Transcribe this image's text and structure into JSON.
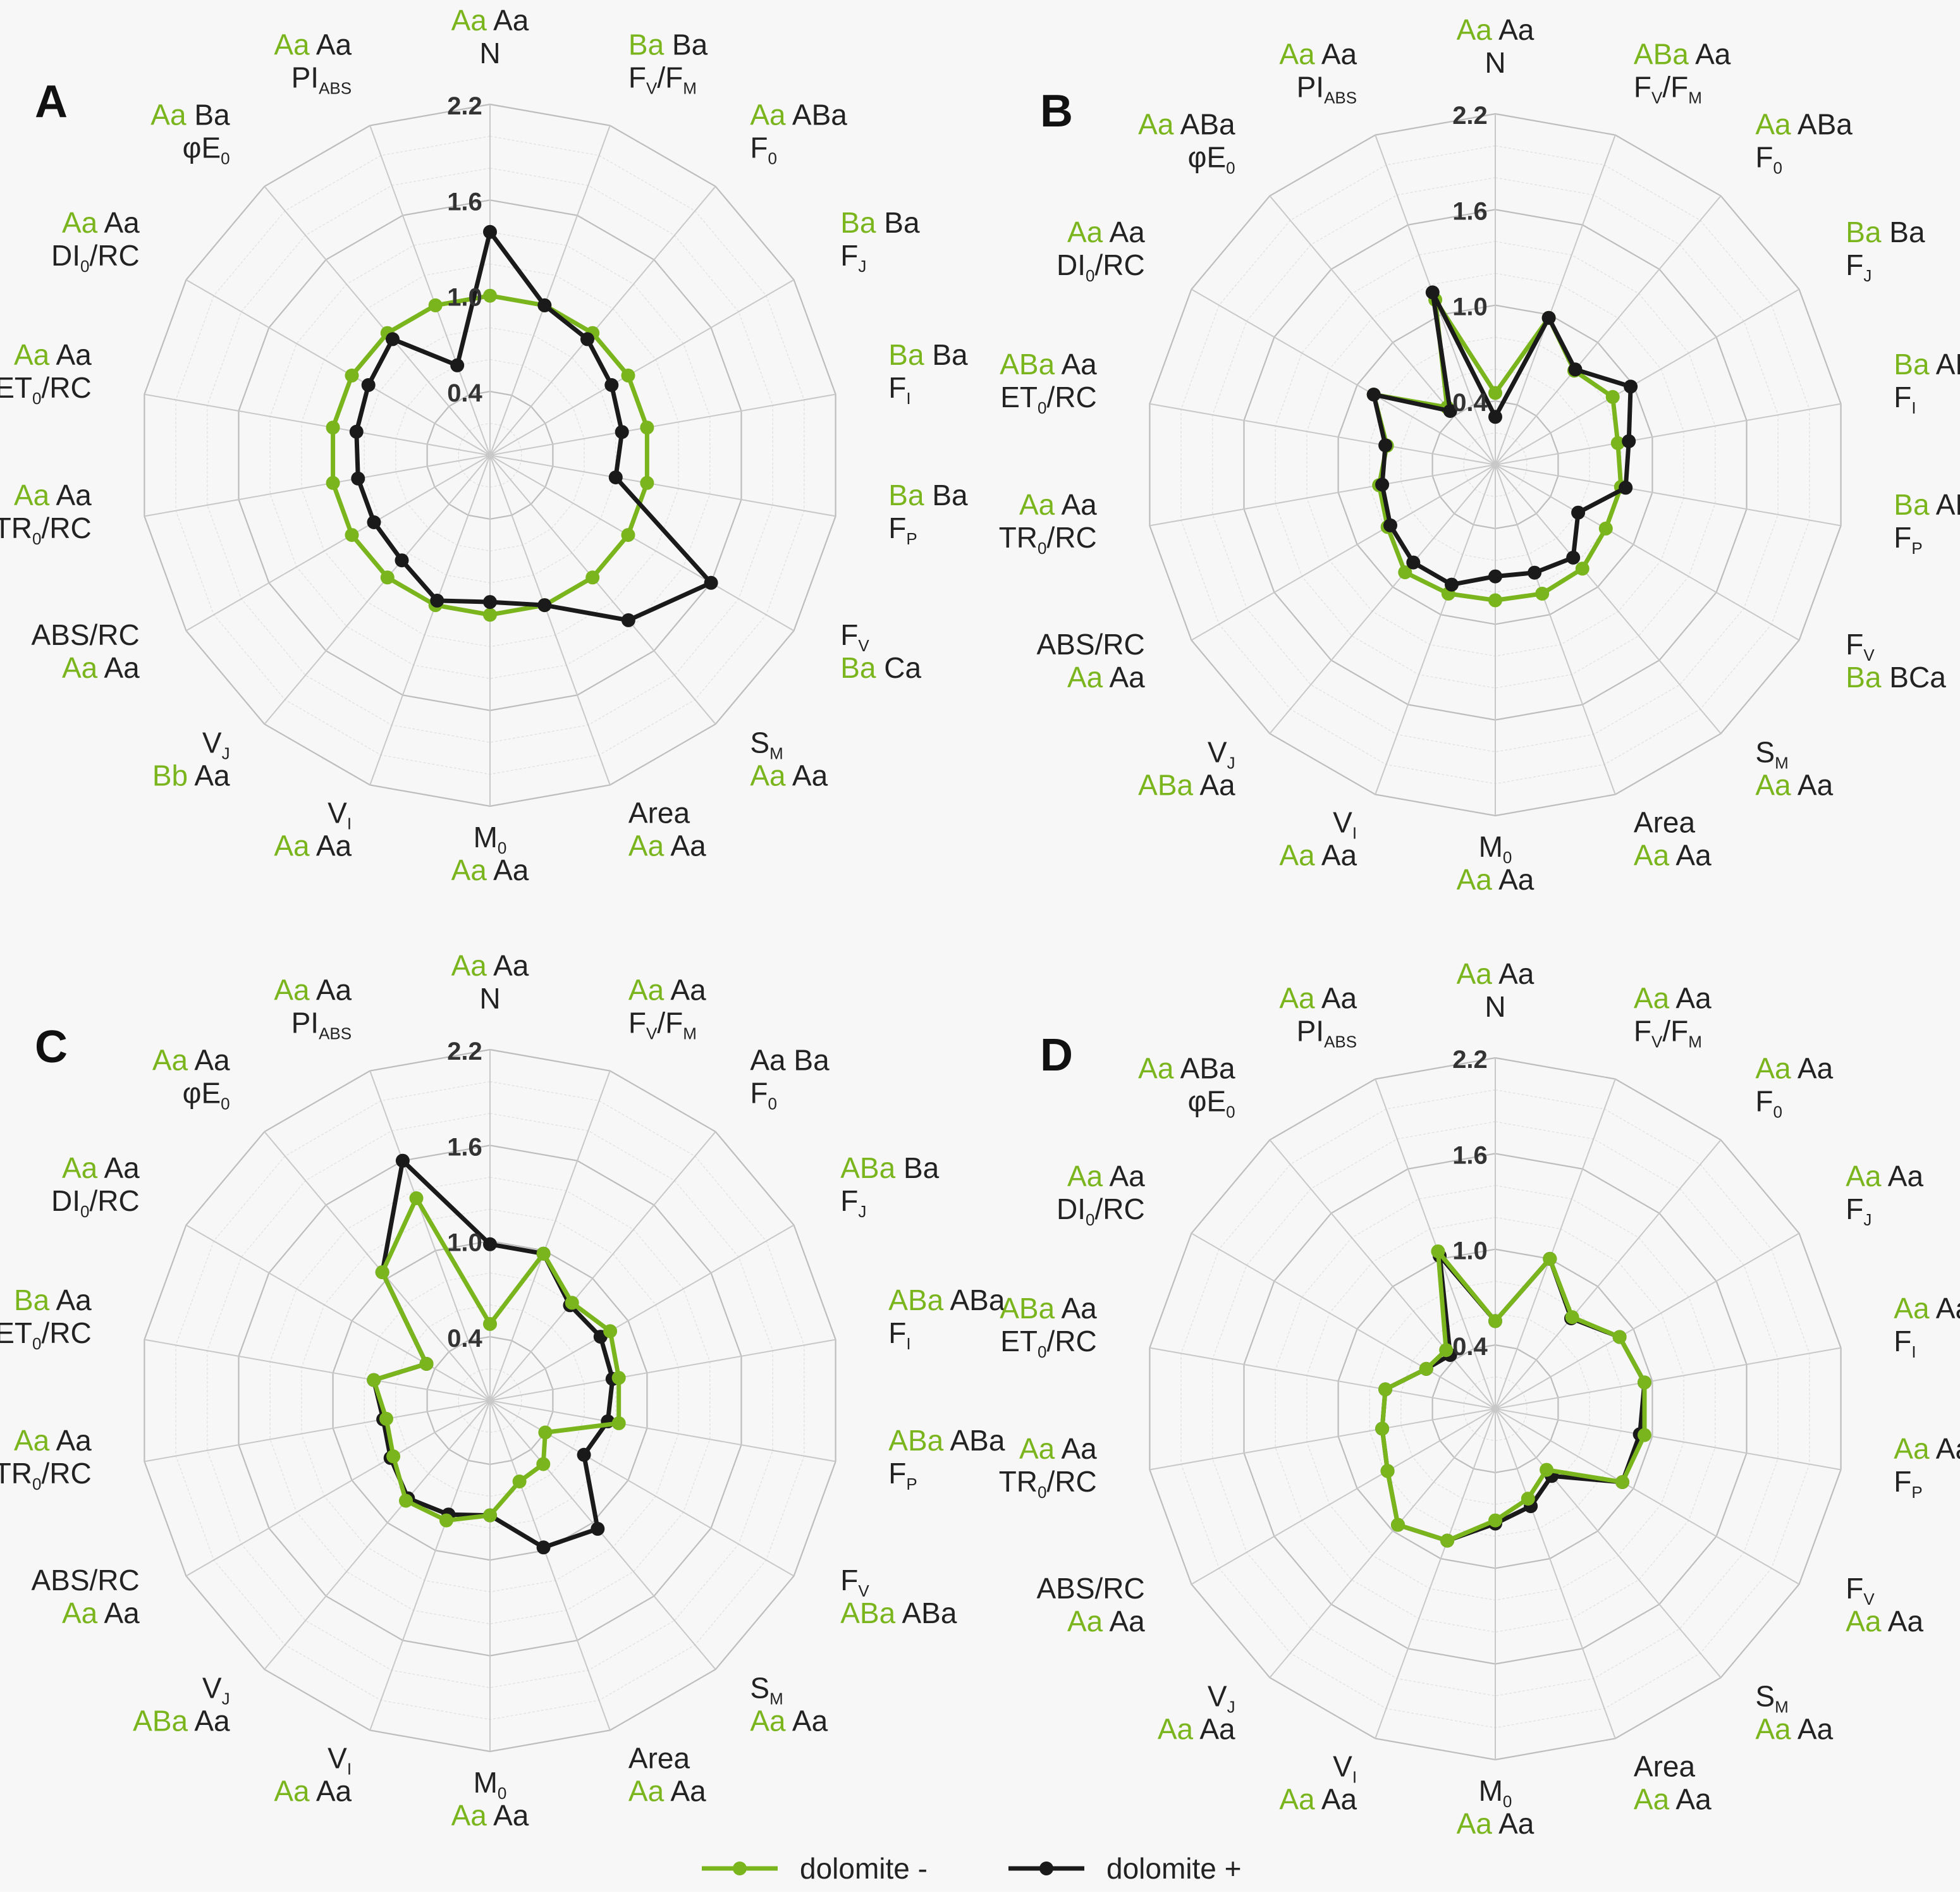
{
  "legend": {
    "items": [
      {
        "label": "dolomite -",
        "color": "#7ab51d"
      },
      {
        "label": "dolomite +",
        "color": "#1a1a1a"
      }
    ]
  },
  "colors": {
    "green": "#7ab51d",
    "black": "#1a1a1a",
    "grid": "#cfcfcf"
  },
  "chart_data": [
    {
      "type": "radar",
      "panel": "A",
      "ticks": [
        "0.4",
        "1.0",
        "1.6",
        "2.2"
      ],
      "rlim": [
        0,
        2.2
      ],
      "axes": [
        {
          "main": "N",
          "sub": "",
          "letters": [
            "Aa",
            "Aa"
          ]
        },
        {
          "main": "F",
          "sub": "V",
          "tail": "/F",
          "sub2": "M",
          "letters": [
            "Ba",
            "Ba"
          ]
        },
        {
          "main": "F",
          "sub": "0",
          "letters": [
            "Aa",
            "ABa"
          ]
        },
        {
          "main": "F",
          "sub": "J",
          "letters": [
            "Ba",
            "Ba"
          ]
        },
        {
          "main": "F",
          "sub": "I",
          "letters": [
            "Ba",
            "Ba"
          ]
        },
        {
          "main": "F",
          "sub": "P",
          "letters": [
            "Ba",
            "Ba"
          ]
        },
        {
          "main": "F",
          "sub": "V",
          "letters": [
            "Ba",
            "Ca"
          ]
        },
        {
          "main": "S",
          "sub": "M",
          "letters": [
            "Aa",
            "Aa"
          ]
        },
        {
          "main": "Area",
          "sub": "",
          "letters": [
            "Aa",
            "Aa"
          ]
        },
        {
          "main": "M",
          "sub": "0",
          "letters": [
            "Aa",
            "Aa"
          ]
        },
        {
          "main": "V",
          "sub": "I",
          "letters": [
            "Aa",
            "Aa"
          ]
        },
        {
          "main": "V",
          "sub": "J",
          "letters": [
            "Bb",
            "Aa"
          ]
        },
        {
          "main": "ABS/RC",
          "sub": "",
          "letters": [
            "Aa",
            "Aa"
          ]
        },
        {
          "main": "TR",
          "sub": "0",
          "tail": "/RC",
          "letters": [
            "Aa",
            "Aa"
          ]
        },
        {
          "main": "ET",
          "sub": "0",
          "tail": "/RC",
          "letters": [
            "Aa",
            "Aa"
          ]
        },
        {
          "main": "DI",
          "sub": "0",
          "tail": "/RC",
          "letters": [
            "Aa",
            "Aa"
          ]
        },
        {
          "main": "φE",
          "sub": "0",
          "letters": [
            "Aa",
            "Ba"
          ]
        },
        {
          "main": "PI",
          "sub": "ABS",
          "letters": [
            "Aa",
            "Aa"
          ]
        }
      ],
      "series": [
        {
          "name": "dolomite -",
          "values": [
            1.0,
            1.0,
            1.0,
            1.0,
            1.0,
            1.0,
            1.0,
            1.0,
            1.0,
            1.0,
            1.0,
            1.0,
            1.0,
            1.0,
            1.0,
            1.0,
            1.0,
            1.0
          ]
        },
        {
          "name": "dolomite +",
          "values": [
            1.4,
            1.0,
            0.95,
            0.88,
            0.84,
            0.8,
            1.6,
            1.35,
            1.0,
            0.92,
            0.97,
            0.86,
            0.84,
            0.84,
            0.85,
            0.88,
            0.95,
            0.6
          ]
        }
      ]
    },
    {
      "type": "radar",
      "panel": "B",
      "ticks": [
        "0.4",
        "1.0",
        "1.6",
        "2.2"
      ],
      "rlim": [
        0,
        2.2
      ],
      "axes": [
        {
          "main": "N",
          "sub": "",
          "letters": [
            "Aa",
            "Aa"
          ]
        },
        {
          "main": "F",
          "sub": "V",
          "tail": "/F",
          "sub2": "M",
          "letters": [
            "ABa",
            "Aa"
          ]
        },
        {
          "main": "F",
          "sub": "0",
          "letters": [
            "Aa",
            "ABa"
          ]
        },
        {
          "main": "F",
          "sub": "J",
          "letters": [
            "Ba",
            "Ba"
          ]
        },
        {
          "main": "F",
          "sub": "I",
          "letters": [
            "Ba",
            "ABa"
          ]
        },
        {
          "main": "F",
          "sub": "P",
          "letters": [
            "Ba",
            "ABa"
          ]
        },
        {
          "main": "F",
          "sub": "V",
          "letters": [
            "Ba",
            "BCa"
          ]
        },
        {
          "main": "S",
          "sub": "M",
          "letters": [
            "Aa",
            "Aa"
          ]
        },
        {
          "main": "Area",
          "sub": "",
          "letters": [
            "Aa",
            "Aa"
          ]
        },
        {
          "main": "M",
          "sub": "0",
          "letters": [
            "Aa",
            "Aa"
          ]
        },
        {
          "main": "V",
          "sub": "I",
          "letters": [
            "Aa",
            "Aa"
          ]
        },
        {
          "main": "V",
          "sub": "J",
          "letters": [
            "ABa",
            "Aa"
          ]
        },
        {
          "main": "ABS/RC",
          "sub": "",
          "letters": [
            "Aa",
            "Aa"
          ]
        },
        {
          "main": "TR",
          "sub": "0",
          "tail": "/RC",
          "letters": [
            "Aa",
            "Aa"
          ]
        },
        {
          "main": "ET",
          "sub": "0",
          "tail": "/RC",
          "letters": [
            "ABa",
            "Aa"
          ]
        },
        {
          "main": "DI",
          "sub": "0",
          "tail": "/RC",
          "letters": [
            "Aa",
            "Aa"
          ]
        },
        {
          "main": "φE",
          "sub": "0",
          "letters": [
            "Aa",
            "ABa"
          ]
        },
        {
          "main": "PI",
          "sub": "ABS",
          "letters": [
            "Aa",
            "Aa"
          ]
        }
      ],
      "series": [
        {
          "name": "dolomite -",
          "values": [
            0.45,
            0.98,
            0.77,
            0.85,
            0.78,
            0.8,
            0.8,
            0.85,
            0.86,
            0.85,
            0.86,
            0.88,
            0.78,
            0.74,
            0.69,
            0.88,
            0.47,
            1.1
          ]
        },
        {
          "name": "dolomite +",
          "values": [
            0.3,
            0.98,
            0.78,
            0.98,
            0.85,
            0.83,
            0.6,
            0.76,
            0.72,
            0.7,
            0.8,
            0.8,
            0.76,
            0.72,
            0.7,
            0.88,
            0.44,
            1.15
          ]
        }
      ]
    },
    {
      "type": "radar",
      "panel": "C",
      "ticks": [
        "0.4",
        "1.0",
        "1.6",
        "2.2"
      ],
      "rlim": [
        0,
        2.2
      ],
      "axes": [
        {
          "main": "N",
          "sub": "",
          "letters": [
            "Aa",
            "Aa"
          ]
        },
        {
          "main": "F",
          "sub": "V",
          "tail": "/F",
          "sub2": "M",
          "letters": [
            "Aa",
            "Aa"
          ]
        },
        {
          "main": "F",
          "sub": "0",
          "letters": [
            "Aa",
            "Ba"
          ],
          "plain": true
        },
        {
          "main": "F",
          "sub": "J",
          "letters": [
            "ABa",
            "Ba"
          ]
        },
        {
          "main": "F",
          "sub": "I",
          "letters": [
            "ABa",
            "ABa"
          ]
        },
        {
          "main": "F",
          "sub": "P",
          "letters": [
            "ABa",
            "ABa"
          ]
        },
        {
          "main": "F",
          "sub": "V",
          "letters": [
            "ABa",
            "ABa"
          ]
        },
        {
          "main": "S",
          "sub": "M",
          "letters": [
            "Aa",
            "Aa"
          ]
        },
        {
          "main": "Area",
          "sub": "",
          "letters": [
            "Aa",
            "Aa"
          ]
        },
        {
          "main": "M",
          "sub": "0",
          "letters": [
            "Aa",
            "Aa"
          ]
        },
        {
          "main": "V",
          "sub": "I",
          "letters": [
            "Aa",
            "Aa"
          ]
        },
        {
          "main": "V",
          "sub": "J",
          "letters": [
            "ABa",
            "Aa"
          ]
        },
        {
          "main": "ABS/RC",
          "sub": "",
          "letters": [
            "Aa",
            "Aa"
          ]
        },
        {
          "main": "TR",
          "sub": "0",
          "tail": "/RC",
          "letters": [
            "Aa",
            "Aa"
          ]
        },
        {
          "main": "ET",
          "sub": "0",
          "tail": "/RC",
          "letters": [
            "Ba",
            "Aa"
          ]
        },
        {
          "main": "DI",
          "sub": "0",
          "tail": "/RC",
          "letters": [
            "Aa",
            "Aa"
          ]
        },
        {
          "main": "φE",
          "sub": "0",
          "letters": [
            "Aa",
            "Aa"
          ]
        },
        {
          "main": "PI",
          "sub": "ABS",
          "letters": [
            "Aa",
            "Aa"
          ]
        }
      ],
      "series": [
        {
          "name": "dolomite -",
          "values": [
            0.48,
            0.98,
            0.8,
            0.87,
            0.82,
            0.82,
            0.4,
            0.52,
            0.54,
            0.72,
            0.8,
            0.82,
            0.7,
            0.66,
            0.74,
            0.46,
            1.05,
            1.35
          ]
        },
        {
          "name": "dolomite +",
          "values": [
            0.98,
            0.98,
            0.78,
            0.8,
            0.78,
            0.75,
            0.68,
            1.05,
            0.98,
            0.72,
            0.76,
            0.8,
            0.72,
            0.68,
            0.74,
            0.46,
            1.05,
            1.6
          ]
        }
      ]
    },
    {
      "type": "radar",
      "panel": "D",
      "ticks": [
        "0.4",
        "1.0",
        "1.6",
        "2.2"
      ],
      "rlim": [
        0,
        2.2
      ],
      "axes": [
        {
          "main": "N",
          "sub": "",
          "letters": [
            "Aa",
            "Aa"
          ]
        },
        {
          "main": "F",
          "sub": "V",
          "tail": "/F",
          "sub2": "M",
          "letters": [
            "Aa",
            "Aa"
          ]
        },
        {
          "main": "F",
          "sub": "0",
          "letters": [
            "Aa",
            "Aa"
          ]
        },
        {
          "main": "F",
          "sub": "J",
          "letters": [
            "Aa",
            "Aa"
          ]
        },
        {
          "main": "F",
          "sub": "I",
          "letters": [
            "Aa",
            "Aa"
          ]
        },
        {
          "main": "F",
          "sub": "P",
          "letters": [
            "Aa",
            "Aa"
          ]
        },
        {
          "main": "F",
          "sub": "V",
          "letters": [
            "Aa",
            "Aa"
          ]
        },
        {
          "main": "S",
          "sub": "M",
          "letters": [
            "Aa",
            "Aa"
          ]
        },
        {
          "main": "Area",
          "sub": "",
          "letters": [
            "Aa",
            "Aa"
          ]
        },
        {
          "main": "M",
          "sub": "0",
          "letters": [
            "Aa",
            "Aa"
          ]
        },
        {
          "main": "V",
          "sub": "I",
          "letters": [
            "Aa",
            "Aa"
          ]
        },
        {
          "main": "V",
          "sub": "J",
          "letters": [
            "Aa",
            "Aa"
          ]
        },
        {
          "main": "ABS/RC",
          "sub": "",
          "letters": [
            "Aa",
            "Aa"
          ]
        },
        {
          "main": "TR",
          "sub": "0",
          "tail": "/RC",
          "letters": [
            "Aa",
            "Aa"
          ]
        },
        {
          "main": "ET",
          "sub": "0",
          "tail": "/RC",
          "letters": [
            "ABa",
            "Aa"
          ]
        },
        {
          "main": "DI",
          "sub": "0",
          "tail": "/RC",
          "letters": [
            "Aa",
            "Aa"
          ]
        },
        {
          "main": "φE",
          "sub": "0",
          "letters": [
            "Aa",
            "ABa"
          ]
        },
        {
          "main": "PI",
          "sub": "ABS",
          "letters": [
            "Aa",
            "Aa"
          ]
        }
      ],
      "series": [
        {
          "name": "dolomite -",
          "values": [
            0.55,
            1.0,
            0.75,
            0.9,
            0.95,
            0.95,
            0.92,
            0.5,
            0.6,
            0.7,
            0.88,
            0.95,
            0.78,
            0.72,
            0.7,
            0.5,
            0.48,
            1.05
          ]
        },
        {
          "name": "dolomite +",
          "values": [
            0.55,
            1.0,
            0.74,
            0.9,
            0.95,
            0.92,
            0.92,
            0.55,
            0.65,
            0.72,
            0.88,
            0.95,
            0.78,
            0.72,
            0.7,
            0.5,
            0.44,
            1.02
          ]
        }
      ]
    }
  ],
  "panel_labels": [
    "A",
    "B",
    "C",
    "D"
  ]
}
